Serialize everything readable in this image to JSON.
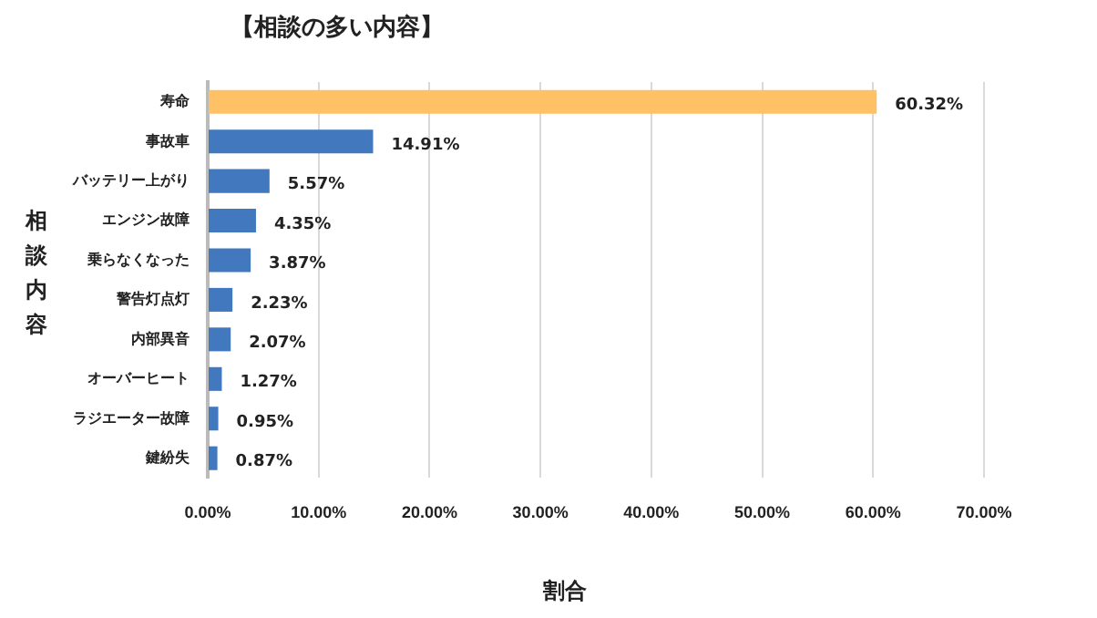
{
  "chart_data": {
    "type": "bar",
    "orientation": "horizontal",
    "title": "【相談の多い内容】",
    "xlabel": "割合",
    "ylabel": "相談内容",
    "categories": [
      "寿命",
      "事故車",
      "バッテリー上がり",
      "エンジン故障",
      "乗らなくなった",
      "警告灯点灯",
      "内部異音",
      "オーバーヒート",
      "ラジエーター故障",
      "鍵紛失"
    ],
    "values": [
      60.32,
      14.91,
      5.57,
      4.35,
      3.87,
      2.23,
      2.07,
      1.27,
      0.95,
      0.87
    ],
    "colors": [
      "#ffc166",
      "#4178be",
      "#4178be",
      "#4178be",
      "#4178be",
      "#4178be",
      "#4178be",
      "#4178be",
      "#4178be",
      "#4178be"
    ],
    "value_labels": [
      "60.32%",
      "14.91%",
      "5.57%",
      "4.35%",
      "3.87%",
      "2.23%",
      "2.07%",
      "1.27%",
      "0.95%",
      "0.87%"
    ],
    "xlim": [
      0,
      70
    ],
    "xticks": [
      {
        "value": 0,
        "label": "0.00%"
      },
      {
        "value": 10,
        "label": "10.00%"
      },
      {
        "value": 20,
        "label": "20.00%"
      },
      {
        "value": 30,
        "label": "30.00%"
      },
      {
        "value": 40,
        "label": "40.00%"
      },
      {
        "value": 50,
        "label": "50.00%"
      },
      {
        "value": 60,
        "label": "60.00%"
      },
      {
        "value": 70,
        "label": "70.00%"
      }
    ],
    "grid": "x",
    "legend": false
  }
}
